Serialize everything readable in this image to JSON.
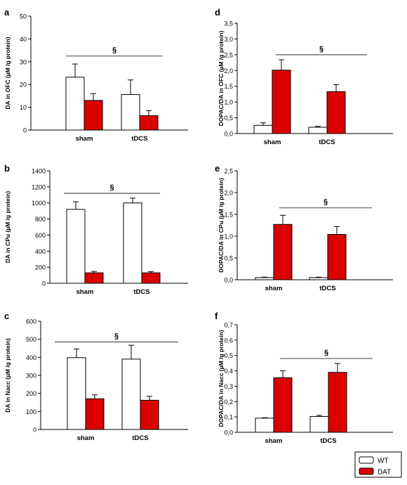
{
  "legend": {
    "entries": [
      {
        "label": "WT",
        "color": "#ffffff"
      },
      {
        "label": "DAT",
        "color": "#dd0000"
      }
    ],
    "placement": "bottom-right"
  },
  "colors": {
    "wt": "#ffffff",
    "dat": "#dd0000",
    "axis": "#000000",
    "sig_line": "#555555"
  },
  "chart_data": [
    {
      "panel": "a",
      "type": "bar",
      "ylabel": "DA in OFC (µM /g protein)",
      "categories": [
        "sham",
        "tDCS"
      ],
      "ylim": [
        0,
        50
      ],
      "yticks": [
        "0",
        "10",
        "20",
        "30",
        "40",
        "50"
      ],
      "series": [
        {
          "name": "WT",
          "values": [
            23.2,
            15.6
          ],
          "errors": [
            5.8,
            6.4
          ]
        },
        {
          "name": "DAT",
          "values": [
            13.0,
            6.3
          ],
          "errors": [
            3.0,
            2.2
          ]
        }
      ],
      "annotation": "§",
      "sig_y": 32.5
    },
    {
      "panel": "b",
      "type": "bar",
      "ylabel": "DA in CPu (µM /g protein)",
      "categories": [
        "sham",
        "tDCS"
      ],
      "ylim": [
        0,
        1400
      ],
      "yticks": [
        "0",
        "200",
        "400",
        "600",
        "800",
        "1000",
        "1200",
        "1400"
      ],
      "series": [
        {
          "name": "WT",
          "values": [
            920,
            1000
          ],
          "errors": [
            95,
            60
          ]
        },
        {
          "name": "DAT",
          "values": [
            130,
            130
          ],
          "errors": [
            18,
            15
          ]
        }
      ],
      "annotation": "§",
      "sig_y": 1120
    },
    {
      "panel": "c",
      "type": "bar",
      "ylabel": "DA in Nacc (µM /g protein)",
      "categories": [
        "sham",
        "tDCS"
      ],
      "ylim": [
        0,
        600
      ],
      "yticks": [
        "0",
        "100",
        "200",
        "300",
        "400",
        "500",
        "600"
      ],
      "series": [
        {
          "name": "WT",
          "values": [
            398,
            390
          ],
          "errors": [
            48,
            77
          ]
        },
        {
          "name": "DAT",
          "values": [
            170,
            162
          ],
          "errors": [
            22,
            22
          ]
        }
      ],
      "annotation": "§",
      "sig_y": 485
    },
    {
      "panel": "d",
      "type": "bar",
      "ylabel": "DOPAC/DA in OFC (µM /g protein)",
      "categories": [
        "sham",
        "tDCS"
      ],
      "ylim": [
        0,
        3.5
      ],
      "yticks": [
        "0,0",
        "0,5",
        "1,0",
        "1,5",
        "2,0",
        "2,5",
        "3,0",
        "3,5"
      ],
      "series": [
        {
          "name": "WT",
          "values": [
            0.26,
            0.2
          ],
          "errors": [
            0.08,
            0.03
          ]
        },
        {
          "name": "DAT",
          "values": [
            2.01,
            1.33
          ],
          "errors": [
            0.33,
            0.22
          ]
        }
      ],
      "annotation": "§",
      "sig_y": 2.5
    },
    {
      "panel": "e",
      "type": "bar",
      "ylabel": "DOPAC/DA in CPu (µM /g protein)",
      "categories": [
        "sham",
        "tDCS"
      ],
      "ylim": [
        0,
        2.5
      ],
      "yticks": [
        "0,0",
        "0,5",
        "1,0",
        "1,5",
        "2,0",
        "2,5"
      ],
      "series": [
        {
          "name": "WT",
          "values": [
            0.05,
            0.05
          ],
          "errors": [
            0.01,
            0.01
          ]
        },
        {
          "name": "DAT",
          "values": [
            1.27,
            1.04
          ],
          "errors": [
            0.21,
            0.18
          ]
        }
      ],
      "annotation": "§",
      "sig_y": 1.65
    },
    {
      "panel": "f",
      "type": "bar",
      "ylabel": "DOPAC/DA in Nacc (µM /g protein)",
      "categories": [
        "sham",
        "tDCS"
      ],
      "ylim": [
        0,
        0.7
      ],
      "yticks": [
        "0,0",
        "0,1",
        "0,2",
        "0,3",
        "0,4",
        "0,5",
        "0,6",
        "0,7"
      ],
      "series": [
        {
          "name": "WT",
          "values": [
            0.092,
            0.103
          ],
          "errors": [
            0.003,
            0.007
          ]
        },
        {
          "name": "DAT",
          "values": [
            0.355,
            0.39
          ],
          "errors": [
            0.045,
            0.058
          ]
        }
      ],
      "annotation": "§",
      "sig_y": 0.48
    }
  ]
}
